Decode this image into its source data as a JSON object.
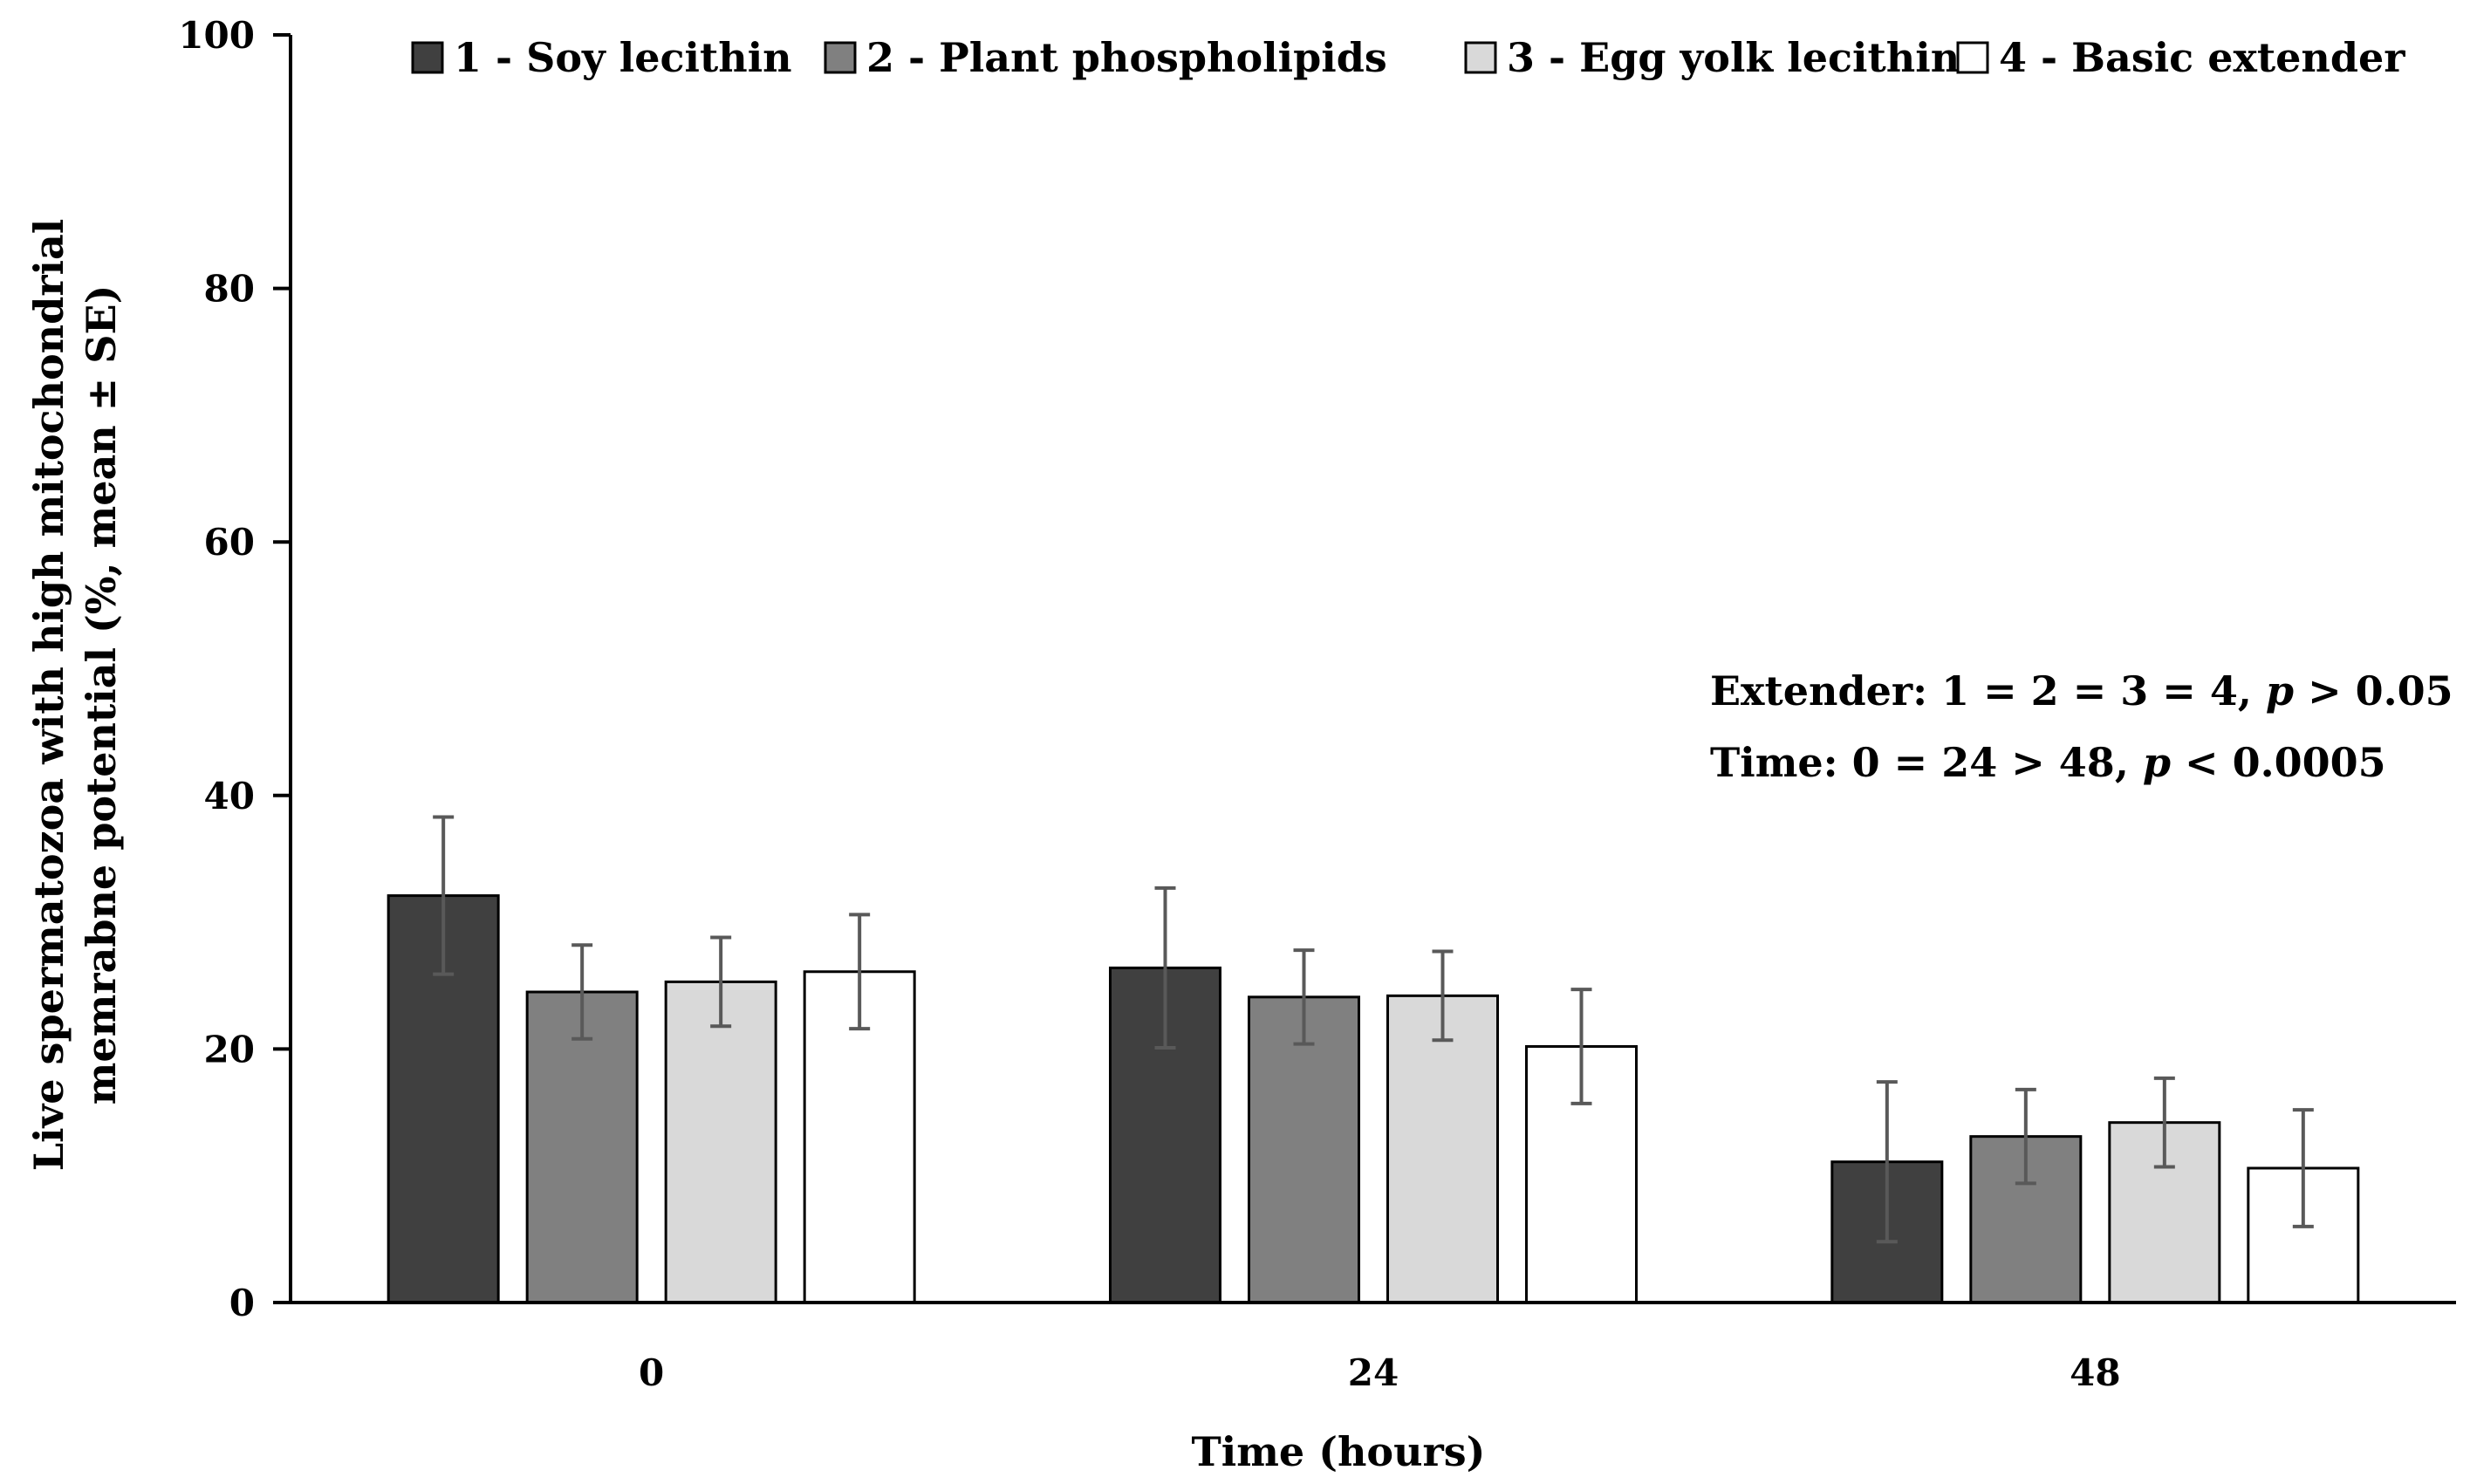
{
  "chart_data": {
    "type": "bar",
    "title": "",
    "xlabel": "Time (hours)",
    "ylabel_lines": [
      "Live spermatozoa with high mitochondrial",
      "memrabne potential (%, mean ± SE)"
    ],
    "categories": [
      "0",
      "24",
      "48"
    ],
    "ylim": [
      0,
      100
    ],
    "yticks": [
      0,
      20,
      40,
      60,
      80,
      100
    ],
    "grid": false,
    "legend_position": "top",
    "series": [
      {
        "name": "1 - Soy lecithin",
        "color": "#404040",
        "values": [
          32.1,
          26.4,
          11.1
        ],
        "errors": [
          6.2,
          6.3,
          6.3
        ]
      },
      {
        "name": "2 - Plant phospholipids",
        "color": "#808080",
        "values": [
          24.5,
          24.1,
          13.1
        ],
        "errors": [
          3.7,
          3.7,
          3.7
        ]
      },
      {
        "name": "3 - Egg yolk lecithin",
        "color": "#d9d9d9",
        "values": [
          25.3,
          24.2,
          14.2
        ],
        "errors": [
          3.5,
          3.5,
          3.5
        ]
      },
      {
        "name": "4 - Basic extender",
        "color": "#ffffff",
        "values": [
          26.1,
          20.2,
          10.6
        ],
        "errors": [
          4.5,
          4.5,
          4.6
        ]
      }
    ],
    "annotations": [
      {
        "parts": [
          {
            "text": "Extender: 1 = 2 = 3 = 4, ",
            "italic": false
          },
          {
            "text": "p",
            "italic": true
          },
          {
            "text": " > 0.05",
            "italic": false
          }
        ]
      },
      {
        "parts": [
          {
            "text": "Time: 0 = 24 > 48, ",
            "italic": false
          },
          {
            "text": "p",
            "italic": true
          },
          {
            "text": " < 0.0005",
            "italic": false
          }
        ]
      }
    ]
  }
}
